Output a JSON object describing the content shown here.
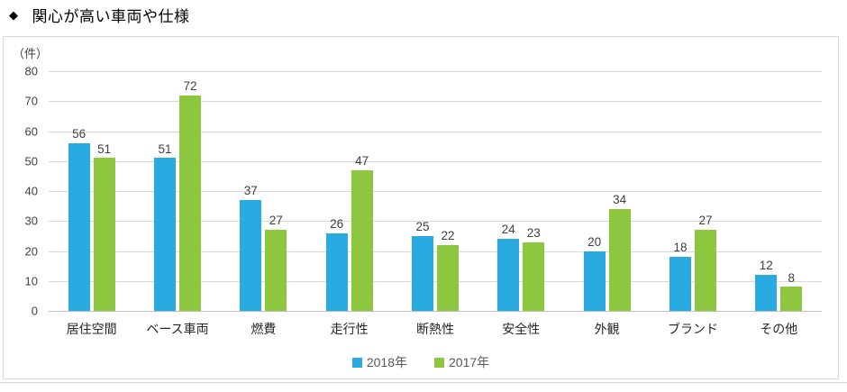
{
  "page": {
    "title_bullet": "◆",
    "title": "関心が高い車両や仕様"
  },
  "chart_data": {
    "type": "bar",
    "title": "関心が高い車両や仕様",
    "unit_label": "（件）",
    "categories": [
      "居住空間",
      "ベース車両",
      "燃費",
      "走行性",
      "断熱性",
      "安全性",
      "外観",
      "ブランド",
      "その他"
    ],
    "series": [
      {
        "name": "2018年",
        "color": "#29abe2",
        "values": [
          56,
          51,
          37,
          26,
          25,
          24,
          20,
          18,
          12
        ]
      },
      {
        "name": "2017年",
        "color": "#8dc63f",
        "values": [
          51,
          72,
          27,
          47,
          22,
          23,
          34,
          27,
          8
        ]
      }
    ],
    "ylim": [
      0,
      80
    ],
    "yticks": [
      0,
      10,
      20,
      30,
      40,
      50,
      60,
      70,
      80
    ],
    "grid": "horizontal",
    "legend_position": "bottom-center",
    "colors": {
      "gridline": "#d9d9d9",
      "axis_line": "#bfbfbf",
      "chart_border": "#d9d9d9",
      "label_text": "#404040",
      "legend_text": "#595959"
    }
  }
}
